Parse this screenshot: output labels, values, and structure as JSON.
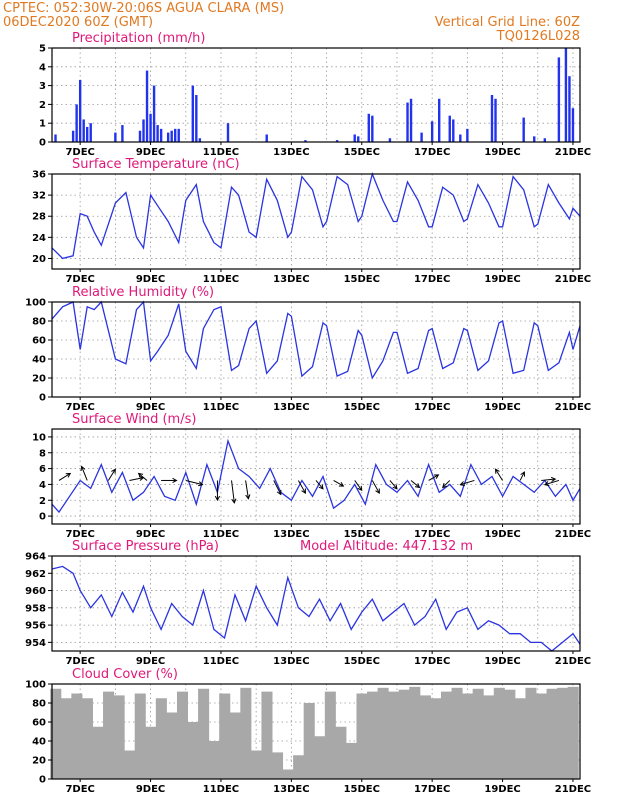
{
  "header": {
    "line1": "CPTEC:   052:30W-20:06S   AGUA CLARA (MS)",
    "line2": "06DEC2020 60Z (GMT)",
    "right1": "Vertical Grid Line: 60Z",
    "right2": "TQ0126L028"
  },
  "x_ticks": [
    "7DEC",
    "9DEC",
    "11DEC",
    "13DEC",
    "15DEC",
    "17DEC",
    "19DEC",
    "21DEC"
  ],
  "colors": {
    "line": "#2a34e0",
    "bars": "#2233ee",
    "cloud": "#a8a8a8",
    "header": "#e07a22",
    "title": "#e0187a"
  },
  "chart_data": [
    {
      "type": "bar",
      "title": "Precipitation (mm/h)",
      "ylim": [
        0,
        5
      ],
      "yticks": [
        "0",
        "1",
        "2",
        "3",
        "4",
        "5"
      ],
      "xlim": [
        6.2,
        21.2
      ],
      "x": [
        6.3,
        6.8,
        6.9,
        7.0,
        7.1,
        7.2,
        7.3,
        8.0,
        8.2,
        8.7,
        8.8,
        8.9,
        9.0,
        9.1,
        9.2,
        9.3,
        9.5,
        9.6,
        9.7,
        9.8,
        10.2,
        10.3,
        10.4,
        11.2,
        12.3,
        13.4,
        14.3,
        14.8,
        14.9,
        15.2,
        15.3,
        15.8,
        16.3,
        16.4,
        16.7,
        17.0,
        17.2,
        17.5,
        17.6,
        17.8,
        18.0,
        18.7,
        18.8,
        19.6,
        19.9,
        20.2,
        20.6,
        20.8,
        20.9,
        21.0
      ],
      "values": [
        0.4,
        0.6,
        2.0,
        3.3,
        1.2,
        0.8,
        1.0,
        0.5,
        0.9,
        0.6,
        1.2,
        3.8,
        1.5,
        3.0,
        0.9,
        0.7,
        0.5,
        0.6,
        0.7,
        0.7,
        3.0,
        2.5,
        0.2,
        1.0,
        0.4,
        0.1,
        0.1,
        0.4,
        0.3,
        1.5,
        1.4,
        0.2,
        2.1,
        2.3,
        0.5,
        1.1,
        2.3,
        1.4,
        1.2,
        0.4,
        0.7,
        2.5,
        2.3,
        1.3,
        0.3,
        0.2,
        4.5,
        5.0,
        3.5,
        1.8
      ]
    },
    {
      "type": "line",
      "title": "Surface Temperature (nC)",
      "ylim": [
        18,
        36
      ],
      "yticks": [
        "20",
        "24",
        "28",
        "32",
        "36"
      ],
      "xlim": [
        6.2,
        21.2
      ],
      "x": [
        6.2,
        6.5,
        6.8,
        7.0,
        7.2,
        7.4,
        7.6,
        8.0,
        8.3,
        8.6,
        8.8,
        9.0,
        9.2,
        9.5,
        9.8,
        10.0,
        10.3,
        10.5,
        10.8,
        11.0,
        11.3,
        11.5,
        11.8,
        12.0,
        12.3,
        12.6,
        12.9,
        13.0,
        13.3,
        13.6,
        13.9,
        14.0,
        14.3,
        14.6,
        14.9,
        15.0,
        15.3,
        15.6,
        15.9,
        16.0,
        16.3,
        16.6,
        16.9,
        17.0,
        17.3,
        17.6,
        17.9,
        18.0,
        18.3,
        18.6,
        18.9,
        19.0,
        19.3,
        19.6,
        19.9,
        20.0,
        20.3,
        20.6,
        20.9,
        21.0,
        21.2
      ],
      "values": [
        22.0,
        20.0,
        20.5,
        28.5,
        28.0,
        25.0,
        22.5,
        30.5,
        32.5,
        24.0,
        22.0,
        32.0,
        30.0,
        27.0,
        23.0,
        31.0,
        34.0,
        27.0,
        23.0,
        22.0,
        33.5,
        32.0,
        25.0,
        24.0,
        35.0,
        31.0,
        24.0,
        25.0,
        35.5,
        33.0,
        26.0,
        27.0,
        35.5,
        34.0,
        27.0,
        28.0,
        36.0,
        31.0,
        27.0,
        27.0,
        34.5,
        31.0,
        26.0,
        26.0,
        33.5,
        32.0,
        27.0,
        27.5,
        34.0,
        30.5,
        26.0,
        26.0,
        35.5,
        33.0,
        26.0,
        26.5,
        34.0,
        30.5,
        27.5,
        29.5,
        28.0
      ]
    },
    {
      "type": "line",
      "title": "Relative Humidity (%)",
      "ylim": [
        0,
        100
      ],
      "yticks": [
        "0",
        "20",
        "40",
        "60",
        "80",
        "100"
      ],
      "xlim": [
        6.2,
        21.2
      ],
      "x": [
        6.2,
        6.5,
        6.8,
        7.0,
        7.2,
        7.4,
        7.6,
        8.0,
        8.3,
        8.6,
        8.8,
        9.0,
        9.2,
        9.5,
        9.8,
        10.0,
        10.3,
        10.5,
        10.8,
        11.0,
        11.3,
        11.5,
        11.8,
        12.0,
        12.3,
        12.6,
        12.9,
        13.0,
        13.3,
        13.6,
        13.9,
        14.0,
        14.3,
        14.6,
        14.9,
        15.0,
        15.3,
        15.6,
        15.9,
        16.0,
        16.3,
        16.6,
        16.9,
        17.0,
        17.3,
        17.6,
        17.9,
        18.0,
        18.3,
        18.6,
        18.9,
        19.0,
        19.3,
        19.6,
        19.9,
        20.0,
        20.3,
        20.6,
        20.9,
        21.0,
        21.2
      ],
      "values": [
        82,
        95,
        100,
        50,
        95,
        92,
        100,
        40,
        35,
        92,
        100,
        38,
        48,
        65,
        98,
        48,
        30,
        72,
        92,
        95,
        28,
        33,
        72,
        80,
        25,
        38,
        88,
        85,
        22,
        32,
        78,
        75,
        22,
        27,
        70,
        65,
        20,
        38,
        68,
        68,
        25,
        30,
        70,
        72,
        30,
        36,
        72,
        70,
        28,
        38,
        78,
        80,
        25,
        28,
        78,
        75,
        28,
        36,
        68,
        50,
        75
      ]
    },
    {
      "type": "line",
      "title": "Surface Wind (m/s)",
      "ylim": [
        -1,
        11
      ],
      "yticks": [
        "0",
        "2",
        "4",
        "6",
        "8",
        "10"
      ],
      "xlim": [
        6.2,
        21.2
      ],
      "x": [
        6.2,
        6.4,
        6.7,
        7.0,
        7.3,
        7.6,
        7.9,
        8.2,
        8.5,
        8.8,
        9.1,
        9.4,
        9.7,
        10.0,
        10.3,
        10.6,
        10.9,
        11.2,
        11.5,
        11.8,
        12.1,
        12.4,
        12.7,
        13.0,
        13.3,
        13.6,
        13.9,
        14.2,
        14.5,
        14.8,
        15.1,
        15.4,
        15.7,
        16.0,
        16.3,
        16.6,
        16.9,
        17.2,
        17.5,
        17.8,
        18.1,
        18.4,
        18.7,
        19.0,
        19.3,
        19.6,
        19.9,
        20.2,
        20.5,
        20.8,
        21.0,
        21.2
      ],
      "values": [
        1.5,
        0.5,
        2.5,
        4.5,
        3.5,
        6.5,
        3.0,
        5.5,
        2.0,
        3.0,
        5.0,
        2.5,
        2.0,
        5.5,
        1.5,
        6.5,
        3.0,
        9.5,
        6.0,
        5.0,
        3.5,
        6.0,
        3.0,
        2.0,
        4.5,
        2.5,
        5.0,
        1.0,
        2.0,
        4.0,
        1.5,
        6.5,
        4.0,
        3.0,
        4.5,
        2.5,
        6.5,
        3.0,
        4.0,
        2.5,
        6.5,
        4.0,
        5.0,
        2.5,
        5.0,
        4.0,
        3.0,
        4.5,
        2.5,
        4.0,
        2.0,
        3.5
      ]
    },
    {
      "type": "line",
      "title": "Surface Pressure (hPa)",
      "annotation": "Model Altitude: 447.132  m",
      "ylim": [
        953,
        964
      ],
      "yticks": [
        "954",
        "956",
        "958",
        "960",
        "962",
        "964"
      ],
      "xlim": [
        6.2,
        21.2
      ],
      "x": [
        6.2,
        6.5,
        6.8,
        7.0,
        7.3,
        7.6,
        7.9,
        8.2,
        8.5,
        8.8,
        9.0,
        9.3,
        9.6,
        9.9,
        10.2,
        10.5,
        10.8,
        11.1,
        11.4,
        11.7,
        12.0,
        12.3,
        12.6,
        12.9,
        13.2,
        13.5,
        13.8,
        14.1,
        14.4,
        14.7,
        15.0,
        15.3,
        15.6,
        15.9,
        16.2,
        16.5,
        16.8,
        17.1,
        17.4,
        17.7,
        18.0,
        18.3,
        18.6,
        18.9,
        19.2,
        19.5,
        19.8,
        20.1,
        20.4,
        20.7,
        21.0,
        21.2
      ],
      "values": [
        962.5,
        962.8,
        962.0,
        960.0,
        958.0,
        959.5,
        957.0,
        959.8,
        957.5,
        960.5,
        958.0,
        955.5,
        958.5,
        957.0,
        956.0,
        960.0,
        955.5,
        954.5,
        959.5,
        956.5,
        960.5,
        958.0,
        956.0,
        961.5,
        958.0,
        957.0,
        959.0,
        956.5,
        958.5,
        955.5,
        957.5,
        959.0,
        956.5,
        957.5,
        958.5,
        956.0,
        957.0,
        959.0,
        955.5,
        957.5,
        958.0,
        955.5,
        956.5,
        956.0,
        955.0,
        955.0,
        954.0,
        954.0,
        952.5,
        954.0,
        955.0,
        953.8
      ]
    },
    {
      "type": "bar",
      "title": "Cloud Cover (%)",
      "ylim": [
        0,
        100
      ],
      "yticks": [
        "0",
        "20",
        "40",
        "60",
        "80",
        "100"
      ],
      "xlim": [
        6.2,
        21.2
      ],
      "x": [
        6.3,
        6.6,
        6.9,
        7.2,
        7.5,
        7.8,
        8.1,
        8.4,
        8.7,
        9.0,
        9.3,
        9.6,
        9.9,
        10.2,
        10.5,
        10.8,
        11.1,
        11.4,
        11.7,
        12.0,
        12.3,
        12.6,
        12.9,
        13.2,
        13.5,
        13.8,
        14.1,
        14.4,
        14.7,
        15.0,
        15.3,
        15.6,
        15.9,
        16.2,
        16.5,
        16.8,
        17.1,
        17.4,
        17.7,
        18.0,
        18.3,
        18.6,
        18.9,
        19.2,
        19.5,
        19.8,
        20.1,
        20.4,
        20.7,
        21.0
      ],
      "values": [
        95,
        85,
        90,
        85,
        55,
        92,
        88,
        30,
        90,
        55,
        85,
        70,
        92,
        60,
        95,
        40,
        90,
        70,
        96,
        30,
        92,
        28,
        10,
        25,
        80,
        45,
        92,
        55,
        38,
        90,
        92,
        96,
        92,
        94,
        97,
        88,
        85,
        92,
        96,
        90,
        95,
        88,
        96,
        94,
        85,
        96,
        90,
        95,
        96,
        97
      ]
    }
  ]
}
